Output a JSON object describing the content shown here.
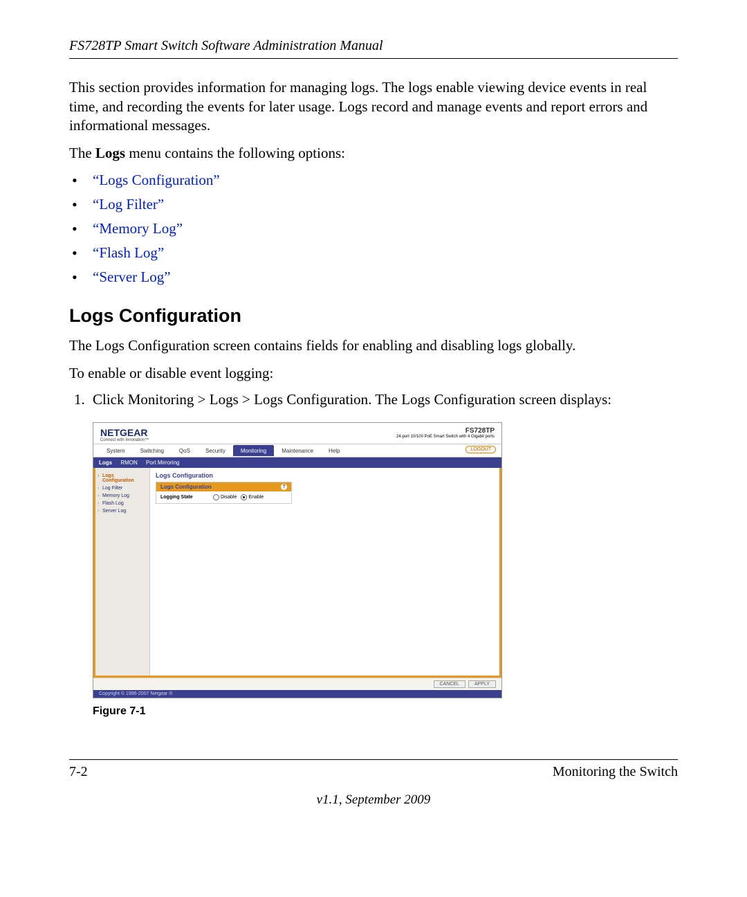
{
  "header": {
    "manual_title": "FS728TP Smart Switch Software Administration Manual"
  },
  "intro": {
    "p1": "This section provides information for managing logs. The logs enable viewing device events in real time, and recording the events for later usage. Logs record and manage events and report errors and informational messages.",
    "p2_a": "The ",
    "p2_b": "Logs",
    "p2_c": " menu contains the following options:"
  },
  "options": [
    "“Logs Configuration”",
    "“Log Filter”",
    "“Memory Log”",
    "“Flash Log”",
    "“Server Log”"
  ],
  "section_heading": "Logs Configuration",
  "section_text": {
    "p1": "The Logs Configuration screen contains fields for enabling and disabling logs globally.",
    "p2": "To enable or disable event logging:"
  },
  "step1": {
    "a": "Click ",
    "b": "Monitoring > Logs > Logs Configuration",
    "c": ". The Logs Configuration screen displays:"
  },
  "screenshot": {
    "brand": "NETGEAR",
    "brand_tag": "Connect with Innovation™",
    "model": "FS728TP",
    "model_sub": "24-port 10/100 PoE Smart Switch with 4 Gigabit ports",
    "tabs": [
      "System",
      "Switching",
      "QoS",
      "Security",
      "Monitoring",
      "Maintenance",
      "Help"
    ],
    "active_tab_index": 4,
    "logout": "LOGOUT",
    "subtabs": [
      "Logs",
      "RMON",
      "Port Mirroring"
    ],
    "active_subtab_index": 0,
    "sidebar": [
      "Logs Configuration",
      "Log Filter",
      "Memory Log",
      "Flash Log",
      "Server Log"
    ],
    "sidebar_active_index": 0,
    "panel_title": "Logs Configuration",
    "panel_head": "Logs Configuration",
    "row_label": "Logging State",
    "radio_disable": "Disable",
    "radio_enable": "Enable",
    "radio_selected": "enable",
    "btn_cancel": "CANCEL",
    "btn_apply": "APPLY",
    "copyright": "Copyright © 1996-2007 Netgear ®",
    "colors": {
      "tab_active_bg": "#3b3f8f",
      "accent_orange": "#e59a1e",
      "link_blue": "#0020cc"
    }
  },
  "figure_caption": "Figure 7-1",
  "footer": {
    "page_num": "7-2",
    "section": "Monitoring the Switch",
    "version": "v1.1, September 2009"
  }
}
